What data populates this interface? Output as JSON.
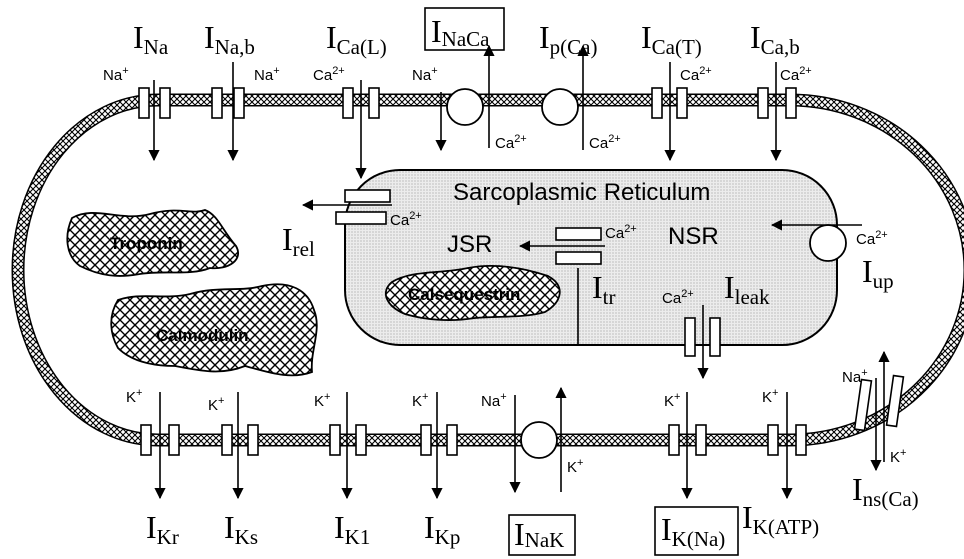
{
  "sr": {
    "title": "Sarcoplasmic Reticulum",
    "jsr": "JSR",
    "nsr": "NSR"
  },
  "buffers": {
    "troponin": "Troponin",
    "calmodulin": "Calmodulin",
    "calsequestrin": "Calsequestrin"
  },
  "currents": {
    "ina": {
      "main": "I",
      "sub": "Na"
    },
    "inab": {
      "main": "I",
      "sub": "Na,b"
    },
    "ical": {
      "main": "I",
      "sub": "Ca(L)"
    },
    "inaca": {
      "main": "I",
      "sub": "NaCa"
    },
    "ipca": {
      "main": "I",
      "sub": "p(Ca)"
    },
    "icat": {
      "main": "I",
      "sub": "Ca(T)"
    },
    "icab": {
      "main": "I",
      "sub": "Ca,b"
    },
    "irel": {
      "main": "I",
      "sub": "rel"
    },
    "itr": {
      "main": "I",
      "sub": "tr"
    },
    "ileak": {
      "main": "I",
      "sub": "leak"
    },
    "iup": {
      "main": "I",
      "sub": "up"
    },
    "ikr": {
      "main": "I",
      "sub": "Kr"
    },
    "iks": {
      "main": "I",
      "sub": "Ks"
    },
    "ik1": {
      "main": "I",
      "sub": "K1"
    },
    "ikp": {
      "main": "I",
      "sub": "Kp"
    },
    "inak": {
      "main": "I",
      "sub": "NaK"
    },
    "ikna": {
      "main": "I",
      "sub": "K(Na)"
    },
    "ikatp": {
      "main": "I",
      "sub": "K(ATP)"
    },
    "insca": {
      "main": "I",
      "sub": "ns(Ca)"
    }
  },
  "ions": {
    "na": {
      "base": "Na",
      "charge": "+"
    },
    "k": {
      "base": "K",
      "charge": "+"
    },
    "ca": {
      "base": "Ca",
      "charge": "2+"
    }
  },
  "colors": {
    "ink": "#000000",
    "membrane_fill": "#7a7a7a",
    "sr_fill": "#e6e6e6"
  }
}
